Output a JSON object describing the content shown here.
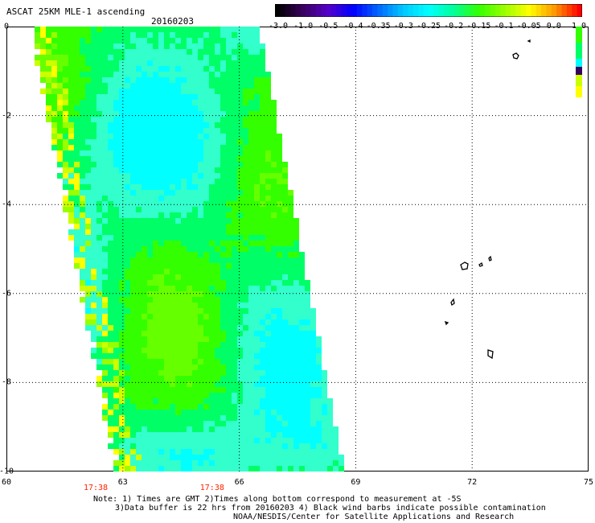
{
  "title": "ASCAT 25KM MLE-1 ascending",
  "date": "20160203",
  "colorbar": {
    "labels": [
      "-3.0",
      "-1.0",
      "-0.5",
      "-0.4",
      "-0.35",
      "-0.3",
      "-0.25",
      "-0.2",
      "-0.15",
      "-0.1",
      "-0.05",
      "0.0",
      "1.0"
    ],
    "colors": [
      "#000000",
      "#3a005e",
      "#5500c8",
      "#0000ff",
      "#0066ff",
      "#00c8ff",
      "#00ffff",
      "#00ff99",
      "#33ff00",
      "#99ff00",
      "#ffff00",
      "#ff9900",
      "#ff0000"
    ]
  },
  "axes": {
    "x_ticks": [
      "60",
      "63",
      "66",
      "69",
      "72",
      "75"
    ],
    "y_ticks": [
      "0",
      "-2",
      "-4",
      "-6",
      "-8",
      "-10"
    ],
    "x_range": [
      60,
      75
    ],
    "y_range": [
      0,
      -10
    ]
  },
  "times": [
    {
      "label": "17:38",
      "lon": 62.3
    },
    {
      "label": "17:38",
      "lon": 65.3
    }
  ],
  "notes": [
    "Note: 1) Times are GMT 2)Times along bottom correspond to measurement at -5S",
    "3)Data buffer is 22 hrs from 20160203 4) Black wind barbs indicate possible contamination",
    "NOAA/NESDIS/Center for Satellite Applications and Research"
  ]
}
